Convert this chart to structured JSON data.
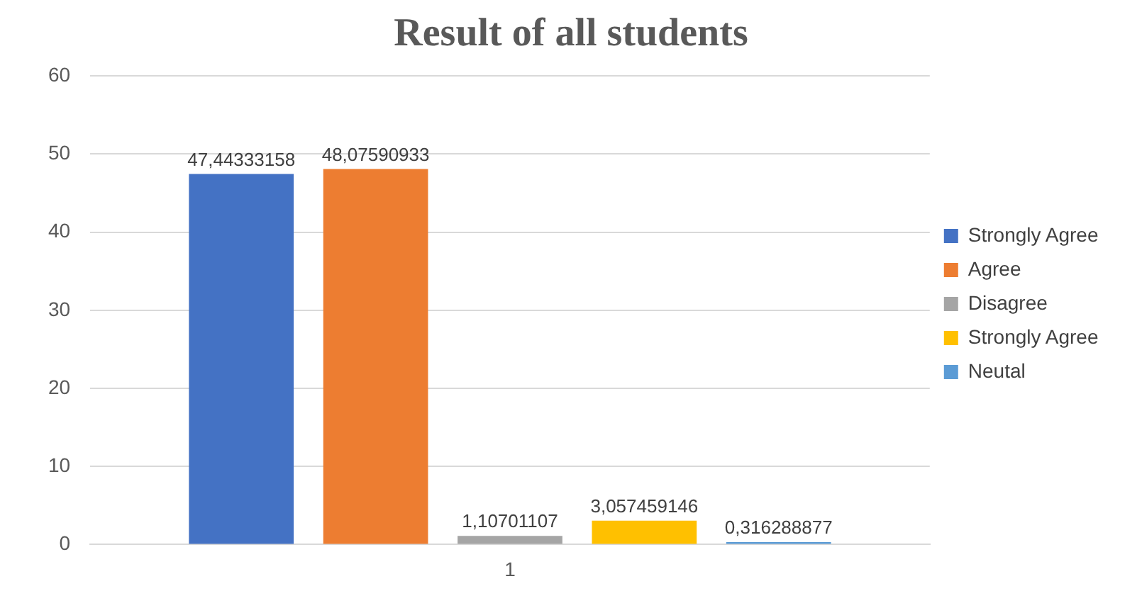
{
  "chart_data": {
    "type": "bar",
    "title": "Result of all students",
    "categories": [
      "1"
    ],
    "series": [
      {
        "name": "Strongly Agree",
        "color": "#4472c4",
        "values": [
          47.44333158
        ],
        "value_labels": [
          "47,44333158"
        ]
      },
      {
        "name": "Agree",
        "color": "#ed7d31",
        "values": [
          48.07590933
        ],
        "value_labels": [
          "48,07590933"
        ]
      },
      {
        "name": "Disagree",
        "color": "#a5a5a5",
        "values": [
          1.10701107
        ],
        "value_labels": [
          "1,10701107"
        ]
      },
      {
        "name": "Strongly Agree",
        "color": "#ffc000",
        "values": [
          3.057459146
        ],
        "value_labels": [
          "3,057459146"
        ]
      },
      {
        "name": "Neutal",
        "color": "#5b9bd5",
        "values": [
          0.316288877
        ],
        "value_labels": [
          "0,316288877"
        ]
      }
    ],
    "ylim": [
      0,
      60
    ],
    "yticks": [
      0,
      10,
      20,
      30,
      40,
      50,
      60
    ],
    "grid": "y",
    "legend": "right"
  }
}
